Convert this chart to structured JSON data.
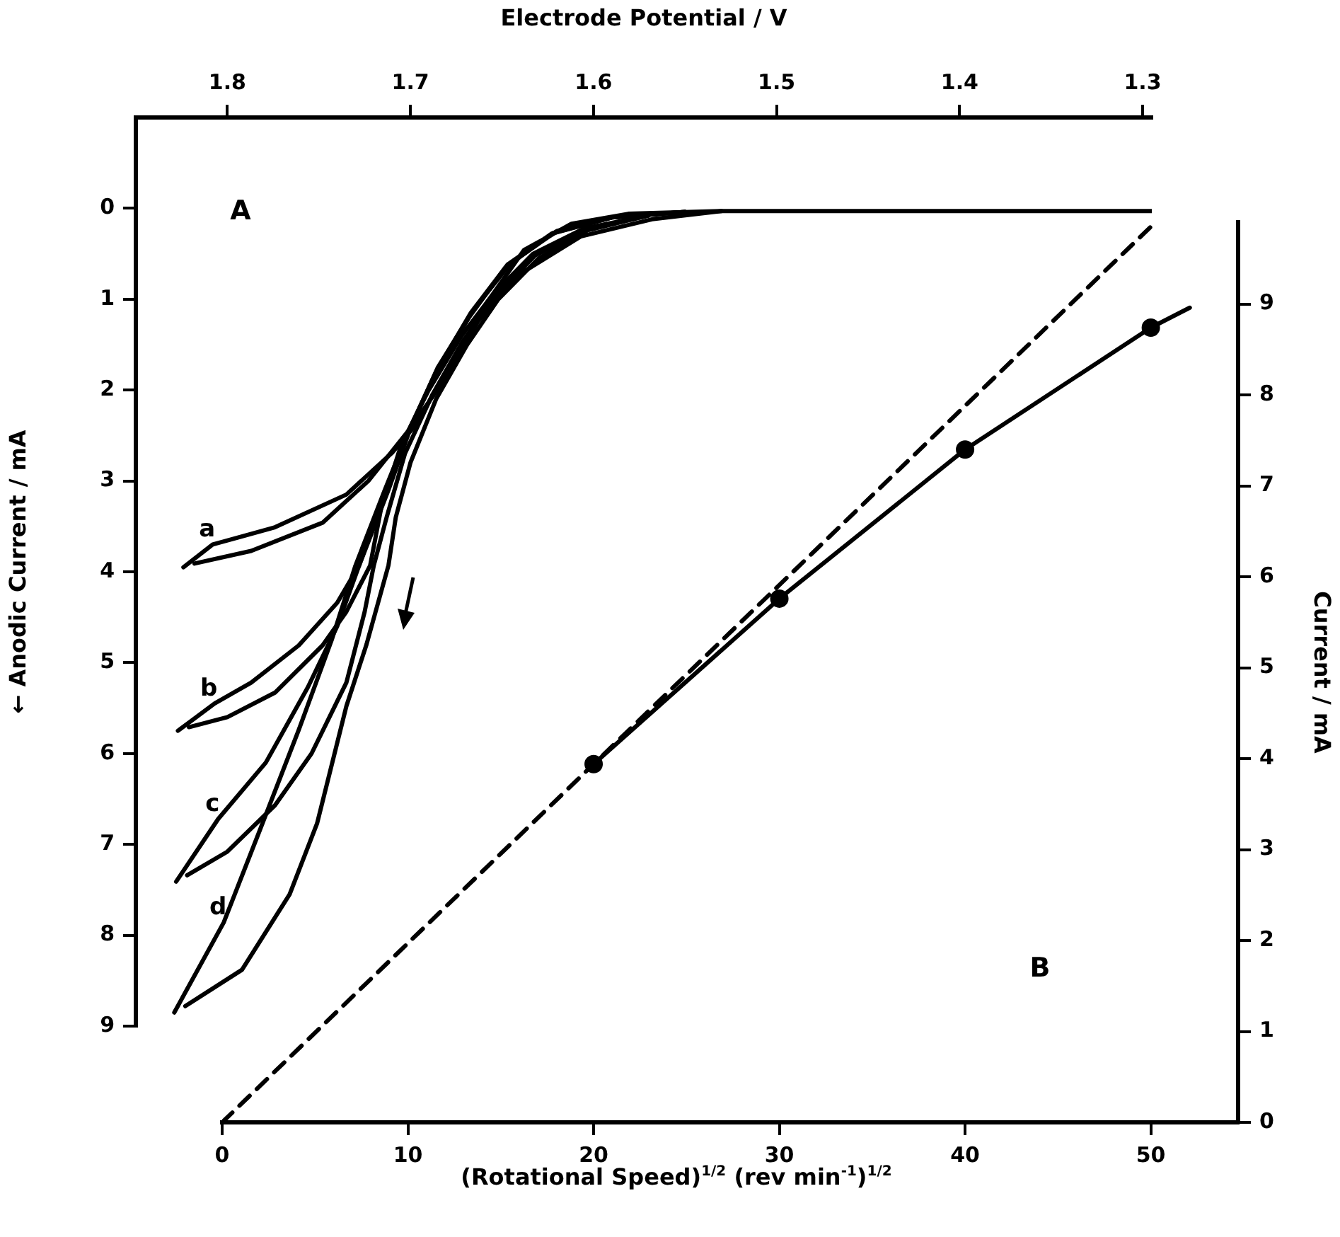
{
  "chart_data": [
    {
      "type": "line",
      "xlabel": "Electrode Potential / V",
      "ylabel": "← Anodic Current / mA",
      "xlim": [
        1.85,
        1.295
      ],
      "xticks": [
        1.8,
        1.7,
        1.6,
        1.5,
        1.4,
        1.3
      ],
      "ylim": [
        9,
        -1
      ],
      "yticks": [
        0,
        1,
        2,
        3,
        4,
        5,
        6,
        7,
        8,
        9
      ],
      "grid": false,
      "legend": false,
      "line_style": "solid",
      "marker": "none",
      "annotations": [
        "A"
      ],
      "series": [
        {
          "name": "a",
          "color": "#000000",
          "x": [
            1.824,
            1.808,
            1.774,
            1.735,
            1.71,
            1.697,
            1.679,
            1.658,
            1.638,
            1.612,
            1.581,
            1.53,
            1.45,
            1.295
          ],
          "values": [
            3.95,
            3.7,
            3.51,
            3.15,
            2.69,
            2.38,
            1.75,
            1.03,
            0.46,
            0.17,
            0.06,
            0.03,
            0.03,
            0.03
          ]
        },
        {
          "color": "#000000",
          "x": [
            1.53,
            1.568,
            1.607,
            1.64,
            1.663,
            1.684,
            1.7,
            1.723,
            1.748,
            1.787,
            1.818
          ],
          "values": [
            0.03,
            0.12,
            0.31,
            0.72,
            1.24,
            1.96,
            2.42,
            3.0,
            3.46,
            3.77,
            3.91
          ]
        },
        {
          "name": "b",
          "color": "#000000",
          "x": [
            1.827,
            1.807,
            1.787,
            1.761,
            1.74,
            1.728,
            1.712,
            1.7,
            1.685,
            1.665,
            1.645,
            1.62,
            1.59,
            1.55
          ],
          "values": [
            5.75,
            5.45,
            5.22,
            4.81,
            4.34,
            3.93,
            3.1,
            2.42,
            1.75,
            1.1,
            0.6,
            0.25,
            0.1,
            0.04
          ]
        },
        {
          "color": "#000000",
          "x": [
            1.57,
            1.605,
            1.633,
            1.655,
            1.672,
            1.69,
            1.705,
            1.716,
            1.722,
            1.735,
            1.748,
            1.774,
            1.8,
            1.821
          ],
          "values": [
            0.08,
            0.22,
            0.5,
            0.95,
            1.4,
            2.0,
            2.6,
            3.3,
            3.93,
            4.44,
            4.81,
            5.33,
            5.6,
            5.71
          ]
        },
        {
          "name": "c",
          "color": "#000000",
          "x": [
            1.828,
            1.805,
            1.779,
            1.756,
            1.74,
            1.728,
            1.713,
            1.701,
            1.686,
            1.667,
            1.647,
            1.622,
            1.59,
            1.55
          ],
          "values": [
            7.41,
            6.72,
            6.1,
            5.27,
            4.6,
            3.93,
            3.1,
            2.45,
            1.8,
            1.15,
            0.62,
            0.27,
            0.1,
            0.04
          ]
        },
        {
          "color": "#000000",
          "x": [
            1.57,
            1.604,
            1.632,
            1.654,
            1.671,
            1.688,
            1.703,
            1.713,
            1.72,
            1.725,
            1.735,
            1.754,
            1.774,
            1.8,
            1.822
          ],
          "values": [
            0.08,
            0.23,
            0.52,
            0.98,
            1.45,
            2.05,
            2.7,
            3.4,
            3.93,
            4.44,
            5.22,
            6.0,
            6.57,
            7.08,
            7.34
          ]
        },
        {
          "name": "d",
          "color": "#000000",
          "x": [
            1.829,
            1.802,
            1.782,
            1.761,
            1.743,
            1.73,
            1.714,
            1.702,
            1.687,
            1.668,
            1.648,
            1.623,
            1.59,
            1.55
          ],
          "values": [
            8.85,
            7.86,
            6.83,
            5.74,
            4.75,
            3.93,
            3.1,
            2.5,
            1.85,
            1.2,
            0.65,
            0.28,
            0.1,
            0.04
          ]
        },
        {
          "color": "#000000",
          "x": [
            1.57,
            1.603,
            1.63,
            1.652,
            1.669,
            1.686,
            1.7,
            1.708,
            1.712,
            1.724,
            1.735,
            1.751,
            1.766,
            1.792,
            1.823
          ],
          "values": [
            0.08,
            0.24,
            0.55,
            1.0,
            1.5,
            2.1,
            2.8,
            3.4,
            3.93,
            4.8,
            5.48,
            6.77,
            7.55,
            8.38,
            8.78
          ]
        }
      ]
    },
    {
      "type": "line",
      "xlabel": "(Rotational Speed)$^{1/2}$ (rev min$^{-1}$)$^{1/2}$",
      "y2label": "Current / mA",
      "xlim": [
        0,
        54.7
      ],
      "xticks": [
        0,
        10,
        20,
        30,
        40,
        50
      ],
      "y2lim": [
        0,
        9.9
      ],
      "y2ticks": [
        0,
        1,
        2,
        3,
        4,
        5,
        6,
        7,
        8,
        9
      ],
      "grid": false,
      "legend": false,
      "annotations": [
        "B"
      ],
      "series": [
        {
          "type": "line",
          "line_style": "dashed",
          "marker": "none",
          "axis": "y2",
          "color": "#000000",
          "x": [
            0,
            50
          ],
          "values": [
            0,
            9.85
          ]
        },
        {
          "type": "line",
          "line_style": "solid",
          "marker": "none",
          "axis": "y2",
          "color": "#000000",
          "x": [
            20,
            30,
            40,
            50,
            52.1
          ],
          "values": [
            3.94,
            5.76,
            7.4,
            8.74,
            8.96
          ]
        },
        {
          "type": "scatter",
          "marker": "circle",
          "axis": "y2",
          "color": "#000000",
          "x": [
            20,
            30,
            40,
            50
          ],
          "values": [
            3.94,
            5.76,
            7.4,
            8.74
          ]
        }
      ]
    }
  ]
}
